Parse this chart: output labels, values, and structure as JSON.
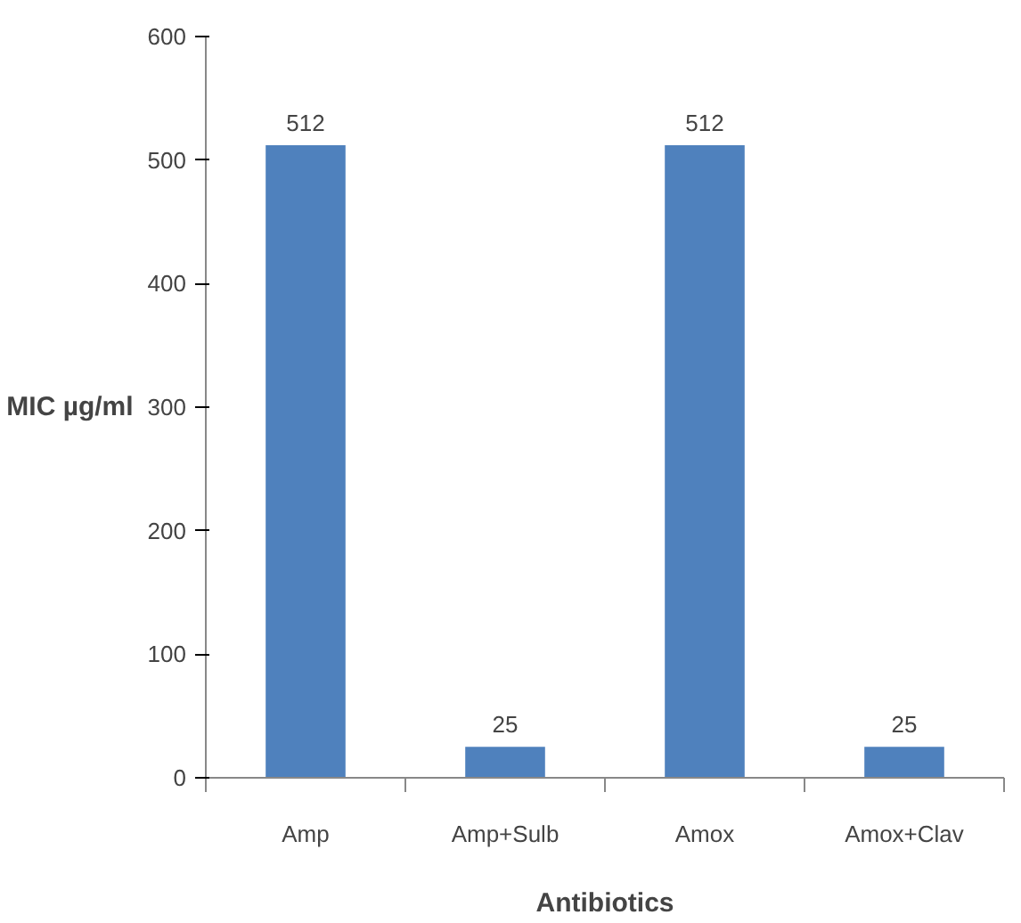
{
  "chart_data": {
    "type": "bar",
    "xlabel": "Antibiotics",
    "ylabel": "MIC µg/ml",
    "categories": [
      "Amp",
      "Amp+Sulb",
      "Amox",
      "Amox+Clav"
    ],
    "values": [
      512,
      25,
      512,
      25
    ],
    "color": "#4f81bd",
    "ylim": [
      0,
      600
    ],
    "yticks": [
      0,
      100,
      200,
      300,
      400,
      500,
      600
    ],
    "data_labels": true,
    "grid": false
  }
}
